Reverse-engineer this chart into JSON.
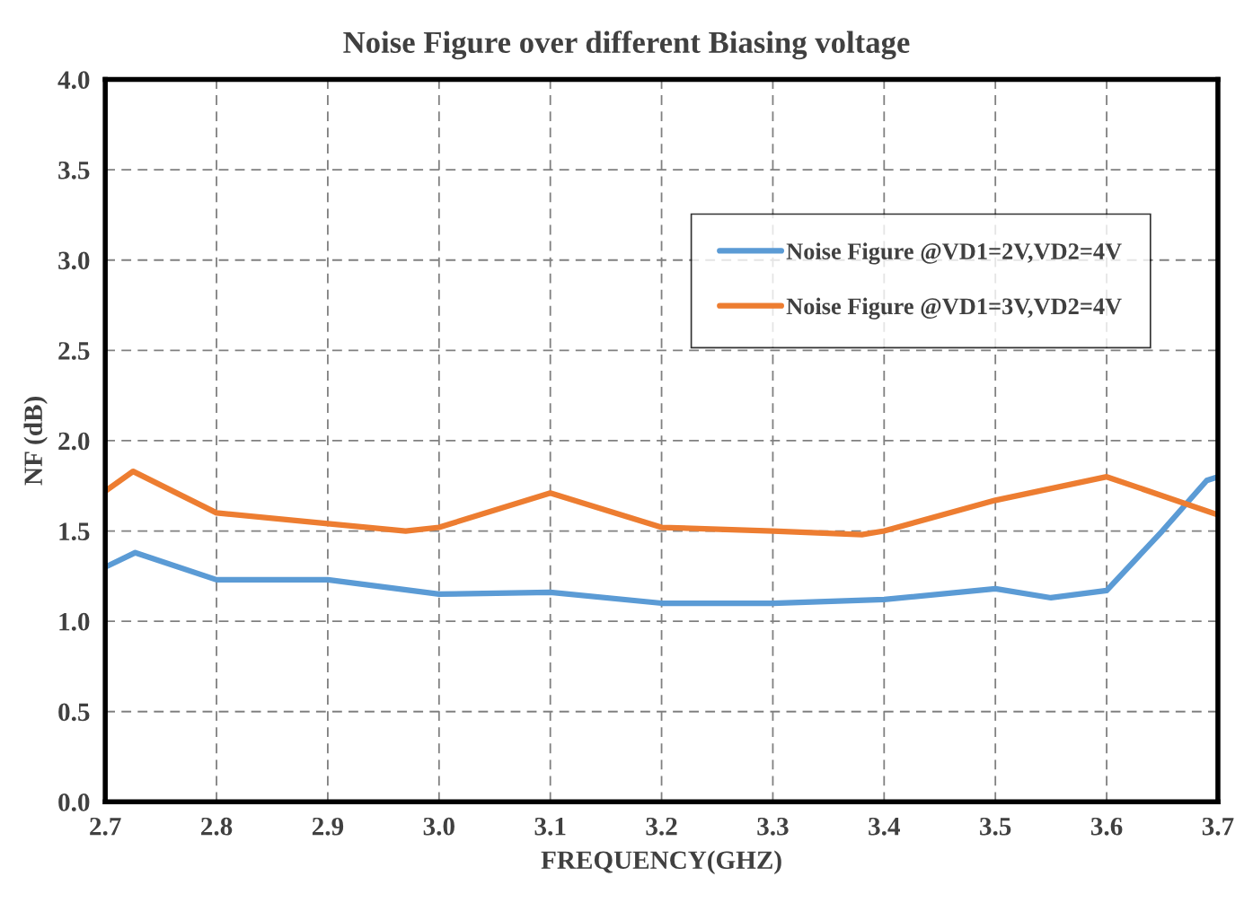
{
  "chart_data": {
    "type": "line",
    "title": "Noise Figure over different Biasing voltage",
    "xlabel": "FREQUENCY(GHZ)",
    "ylabel": "NF (dB)",
    "xlim": [
      2.7,
      3.7
    ],
    "xticks": [
      2.7,
      2.8,
      2.9,
      {
        "value": 3,
        "label": "3.0"
      },
      3.1,
      3.2,
      3.3,
      3.4,
      3.5,
      3.6,
      3.7
    ],
    "ylim": [
      0,
      4
    ],
    "yticks": [
      {
        "value": 0,
        "label": "0.0"
      },
      0.5,
      {
        "value": 1,
        "label": "1.0"
      },
      1.5,
      {
        "value": 2,
        "label": "2.0"
      },
      2.5,
      {
        "value": 3,
        "label": "3.0"
      },
      3.5,
      {
        "value": 4,
        "label": "4.0"
      }
    ],
    "grid": true,
    "legend": "top right",
    "marker": "none",
    "line_style": "solid",
    "series": [
      {
        "name": "Noise Figure @VD1=2V,VD2=4V",
        "color": "#5b9bd5",
        "x": [
          2.7,
          2.727,
          2.8,
          2.85,
          2.9,
          3.0,
          3.1,
          3.2,
          3.3,
          3.4,
          3.5,
          3.55,
          3.6,
          3.65,
          3.69,
          3.7
        ],
        "values": [
          1.3,
          1.38,
          1.23,
          1.23,
          1.23,
          1.15,
          1.16,
          1.1,
          1.1,
          1.12,
          1.18,
          1.13,
          1.17,
          1.5,
          1.78,
          1.8
        ]
      },
      {
        "name": "Noise Figure @VD1=3V,VD2=4V",
        "color": "#ed7d31",
        "x": [
          2.7,
          2.725,
          2.8,
          2.9,
          2.97,
          3.0,
          3.1,
          3.2,
          3.3,
          3.38,
          3.4,
          3.5,
          3.6,
          3.7
        ],
        "values": [
          1.72,
          1.83,
          1.6,
          1.54,
          1.5,
          1.52,
          1.71,
          1.52,
          1.5,
          1.48,
          1.5,
          1.67,
          1.8,
          1.59
        ]
      }
    ]
  }
}
